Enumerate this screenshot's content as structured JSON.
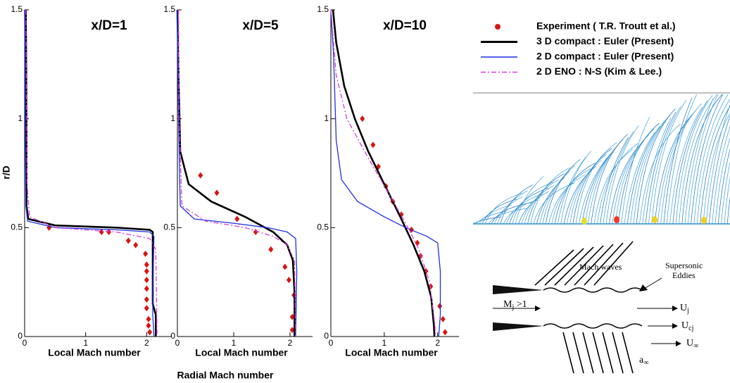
{
  "chart_data": [
    {
      "type": "line",
      "title": "x/D=1",
      "xlabel": "Local Mach number",
      "ylabel": "r/D",
      "xlim": [
        0,
        2.4
      ],
      "ylim": [
        0,
        1.5
      ],
      "xticks": [
        0,
        1,
        2
      ],
      "yticks": [
        0,
        0.5,
        1,
        1.5
      ],
      "series": [
        {
          "style": "markers",
          "color": "#d9150f",
          "x": [
            0.4,
            1.26,
            1.38,
            1.7,
            1.82,
            1.98,
            2.0,
            2.0,
            2.0,
            2.0,
            2.0,
            2.0,
            2.03,
            2.03,
            2.05
          ],
          "values": [
            0.5,
            0.48,
            0.48,
            0.44,
            0.42,
            0.38,
            0.33,
            0.3,
            0.26,
            0.22,
            0.17,
            0.13,
            0.08,
            0.05,
            0.02
          ]
        },
        {
          "style": "line",
          "color": "#000000",
          "x": [
            0.02,
            0.03,
            0.03,
            0.06,
            0.5,
            1.5,
            2.05,
            2.1,
            2.1,
            2.15,
            2.15
          ],
          "values": [
            1.5,
            1.0,
            0.6,
            0.54,
            0.51,
            0.5,
            0.49,
            0.48,
            0.15,
            0.1,
            0.0
          ]
        },
        {
          "style": "line",
          "color": "#1f2fe0",
          "x": [
            0.0,
            0.01,
            0.02,
            0.05,
            0.5,
            1.5,
            2.05,
            2.12,
            2.1,
            2.1,
            2.12
          ],
          "values": [
            1.5,
            1.0,
            0.6,
            0.53,
            0.5,
            0.49,
            0.48,
            0.46,
            0.2,
            0.1,
            0.0
          ]
        },
        {
          "style": "dashdot",
          "color": "#d63ae0",
          "x": [
            0.02,
            0.04,
            0.08,
            0.5,
            1.5,
            2.05,
            2.15,
            2.17
          ],
          "values": [
            1.5,
            0.7,
            0.55,
            0.5,
            0.48,
            0.45,
            0.4,
            0.0
          ]
        }
      ]
    },
    {
      "type": "line",
      "title": "x/D=5",
      "xlabel": "Local Mach number",
      "xlim": [
        0,
        2.4
      ],
      "ylim": [
        0,
        1.5
      ],
      "xticks": [
        0,
        1,
        2
      ],
      "yticks": [
        0,
        0.5,
        1,
        1.5
      ],
      "series": [
        {
          "style": "markers",
          "color": "#d9150f",
          "x": [
            0.41,
            0.7,
            1.06,
            1.39,
            1.66,
            1.91,
            1.98,
            2.07,
            2.04,
            2.04
          ],
          "values": [
            0.74,
            0.66,
            0.54,
            0.48,
            0.4,
            0.32,
            0.26,
            0.19,
            0.09,
            0.03
          ]
        },
        {
          "style": "line",
          "color": "#000000",
          "x": [
            0.0,
            0.02,
            0.05,
            0.2,
            0.6,
            1.2,
            1.7,
            1.95,
            2.05,
            2.08,
            2.08
          ],
          "values": [
            1.5,
            1.2,
            0.85,
            0.7,
            0.62,
            0.55,
            0.48,
            0.42,
            0.35,
            0.2,
            0.0
          ]
        },
        {
          "style": "line",
          "color": "#1f2fe0",
          "x": [
            0.0,
            0.02,
            0.05,
            0.3,
            1.0,
            1.6,
            1.95,
            2.1,
            2.12,
            2.1
          ],
          "values": [
            1.5,
            1.0,
            0.6,
            0.54,
            0.52,
            0.5,
            0.48,
            0.45,
            0.3,
            0.0
          ]
        },
        {
          "style": "dashdot",
          "color": "#d63ae0",
          "x": [
            0.02,
            0.03,
            0.08,
            0.5,
            1.2,
            1.7,
            1.95,
            2.08,
            2.1
          ],
          "values": [
            1.5,
            1.0,
            0.6,
            0.53,
            0.5,
            0.46,
            0.42,
            0.35,
            0.0
          ]
        }
      ]
    },
    {
      "type": "line",
      "title": "x/D=10",
      "xlabel": "Local Mach number",
      "xlim": [
        0,
        2.4
      ],
      "ylim": [
        0,
        1.5
      ],
      "xticks": [
        0,
        1,
        2
      ],
      "yticks": [
        0,
        0.5,
        1,
        1.5
      ],
      "series": [
        {
          "name": "Experiment ( T.R. Troutt et al.)",
          "style": "markers",
          "color": "#d9150f",
          "x": [
            0.59,
            0.79,
            0.89,
            1.03,
            1.16,
            1.32,
            1.51,
            1.62,
            1.68,
            1.78,
            1.87,
            2.04,
            2.1,
            2.14
          ],
          "values": [
            1.0,
            0.88,
            0.78,
            0.69,
            0.62,
            0.56,
            0.49,
            0.43,
            0.37,
            0.3,
            0.23,
            0.14,
            0.08,
            0.02
          ]
        },
        {
          "name": "3 D compact : Euler (Present)",
          "style": "line",
          "color": "#000000",
          "x": [
            0.04,
            0.1,
            0.25,
            0.45,
            0.7,
            1.0,
            1.3,
            1.55,
            1.75,
            1.88,
            1.93,
            1.94
          ],
          "values": [
            1.5,
            1.35,
            1.15,
            1.0,
            0.85,
            0.7,
            0.55,
            0.42,
            0.3,
            0.18,
            0.05,
            0.0
          ]
        },
        {
          "name": "2 D compact : Euler (Present)",
          "style": "line",
          "color": "#1f2fe0",
          "x": [
            0.0,
            0.05,
            0.1,
            0.2,
            0.5,
            1.0,
            1.4,
            1.8,
            2.0,
            2.05,
            2.05,
            2.02
          ],
          "values": [
            1.5,
            1.3,
            0.9,
            0.72,
            0.62,
            0.55,
            0.5,
            0.46,
            0.43,
            0.3,
            0.1,
            0.0
          ]
        },
        {
          "name": "2 D ENO : N-S (Kim & Lee.)",
          "style": "dashdot",
          "color": "#d63ae0",
          "x": [
            0.0,
            0.1,
            0.3,
            0.7,
            1.1,
            1.4,
            1.65,
            1.85,
            1.95,
            1.96
          ],
          "values": [
            1.5,
            1.2,
            1.0,
            0.82,
            0.65,
            0.52,
            0.4,
            0.25,
            0.05,
            0.0
          ]
        }
      ]
    }
  ],
  "caption": "Radial Mach number",
  "diagram": {
    "mach_waves": "Mach waves",
    "eddies": [
      "Supersonic",
      "Eddies"
    ],
    "mj": {
      "text": "M",
      "sub": "j",
      "after": " >1"
    },
    "uj": {
      "text": "U",
      "sub": "j"
    },
    "ucj": {
      "text": "U",
      "sub": "cj"
    },
    "uinf": {
      "text": "U",
      "sub": "∞"
    },
    "ainf": {
      "text": "a",
      "sub": "∞"
    }
  }
}
